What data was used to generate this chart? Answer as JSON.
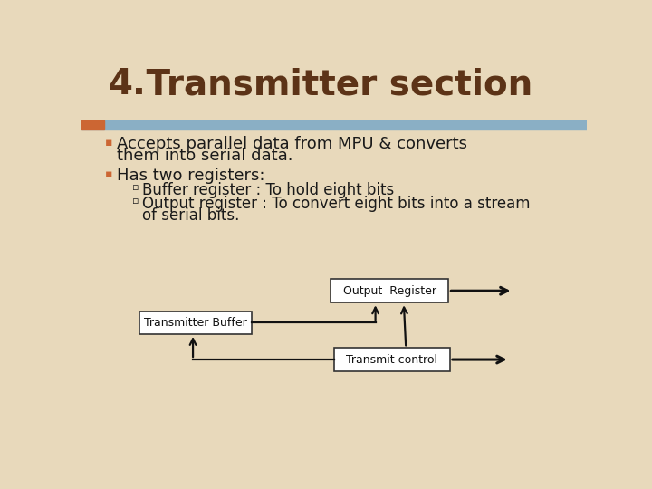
{
  "title_number": "4.",
  "title_text": " Transmitter section",
  "bg_color": "#e8d9bb",
  "title_color": "#5c3317",
  "accent_bar_color": "#8aafc5",
  "accent_square_color": "#cc6633",
  "bullet1_line1": "Accepts parallel data from MPU & converts",
  "bullet1_line2": "them into serial data.",
  "bullet2": "Has two registers:",
  "sub_bullet1": "Buffer register : To hold eight bits",
  "sub_bullet2_line1": "Output register : To convert eight bits into a stream",
  "sub_bullet2_line2": "of serial bits.",
  "bullet_color": "#cc6633",
  "text_color": "#1a1a1a",
  "box_bg": "#ffffff",
  "box_border": "#333333",
  "box1_label": "Output  Register",
  "box2_label": "Transmitter Buffer",
  "box3_label": "Transmit control",
  "arrow_color": "#111111",
  "title_fontsize": 28,
  "body_fontsize": 13,
  "sub_fontsize": 12
}
